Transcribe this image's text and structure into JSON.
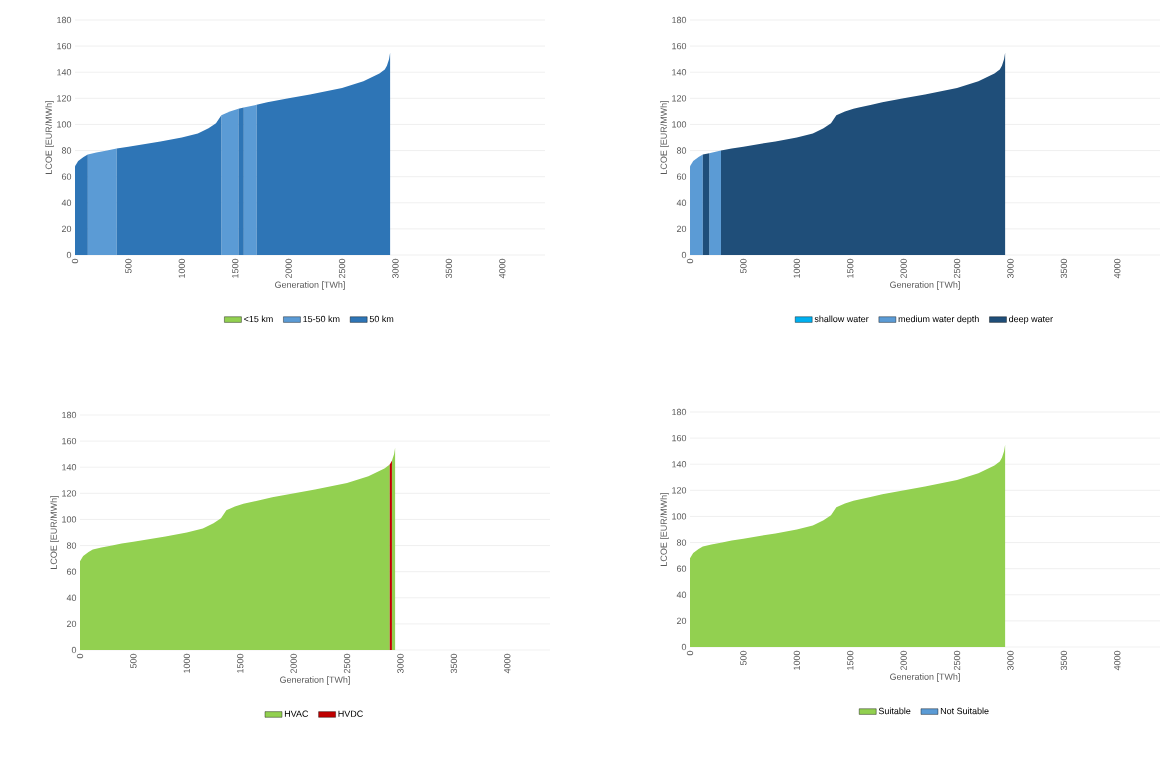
{
  "chart_data": [
    {
      "type": "area",
      "xlabel": "Generation [TWh]",
      "ylabel": "LCOE [EUR/MWh]",
      "xlim": [
        0,
        4400
      ],
      "ylim": [
        0,
        180
      ],
      "xticks": [
        0,
        500,
        1000,
        1500,
        2000,
        2500,
        3000,
        3500,
        4000
      ],
      "yticks": [
        0,
        20,
        40,
        60,
        80,
        100,
        120,
        140,
        160,
        180
      ],
      "grid": "y",
      "legend": "bottom",
      "series": [
        {
          "name": "<15 km",
          "color": "#92d050"
        },
        {
          "name": "15-50 km",
          "color": "#5b9bd5",
          "x": [
            120,
            200,
            300,
            390,
            1000,
            1370,
            1450,
            1530,
            1550,
            1580,
            1700
          ],
          "values": [
            77,
            78.5,
            80,
            81.5,
            null,
            107,
            110,
            112,
            null,
            113,
            115
          ]
        },
        {
          "name": "50 km",
          "color": "#2e75b6",
          "x": [
            0,
            30,
            80,
            120,
            250,
            390,
            500,
            800,
            1000,
            1150,
            1250,
            1320,
            1370,
            1450,
            1530,
            1580,
            1650,
            1700,
            1800,
            2000,
            2200,
            2500,
            2700,
            2850,
            2900,
            2920,
            2940,
            2950
          ],
          "values": [
            68,
            72,
            75,
            77,
            null,
            81.5,
            83,
            87,
            90,
            93,
            97,
            101,
            107,
            null,
            112,
            113,
            null,
            115,
            117,
            120,
            123,
            128,
            133,
            139,
            142,
            145,
            150,
            155
          ]
        }
      ]
    },
    {
      "type": "area",
      "xlabel": "Generation [TWh]",
      "ylabel": "LCOE [EUR/MWh]",
      "xlim": [
        0,
        4400
      ],
      "ylim": [
        0,
        180
      ],
      "xticks": [
        0,
        500,
        1000,
        1500,
        2000,
        2500,
        3000,
        3500,
        4000
      ],
      "yticks": [
        0,
        20,
        40,
        60,
        80,
        100,
        120,
        140,
        160,
        180
      ],
      "grid": "y",
      "legend": "bottom",
      "series": [
        {
          "name": "shallow water",
          "color": "#00b0f0"
        },
        {
          "name": "medium water depth",
          "color": "#5b9bd5",
          "x": [
            0,
            30,
            80,
            120,
            150,
            180,
            240,
            290
          ],
          "values": [
            68,
            72,
            75,
            77,
            null,
            78,
            79,
            80
          ]
        },
        {
          "name": "deep water",
          "color": "#1f4e79",
          "x": [
            120,
            180,
            240,
            290,
            390,
            500,
            800,
            1000,
            1150,
            1250,
            1320,
            1370,
            1450,
            1530,
            1580,
            1700,
            1800,
            2000,
            2200,
            2500,
            2700,
            2850,
            2900,
            2920,
            2940,
            2950
          ],
          "values": [
            77,
            78,
            null,
            80,
            81.5,
            83,
            87,
            90,
            93,
            97,
            101,
            107,
            110,
            112,
            113,
            115,
            117,
            120,
            123,
            128,
            133,
            139,
            142,
            145,
            150,
            155
          ]
        }
      ]
    },
    {
      "type": "area",
      "xlabel": "Generation [TWh]",
      "ylabel": "LCOE [EUR/MWh]",
      "xlim": [
        0,
        4400
      ],
      "ylim": [
        0,
        180
      ],
      "xticks": [
        0,
        500,
        1000,
        1500,
        2000,
        2500,
        3000,
        3500,
        4000
      ],
      "yticks": [
        0,
        20,
        40,
        60,
        80,
        100,
        120,
        140,
        160,
        180
      ],
      "grid": "y",
      "legend": "bottom",
      "series": [
        {
          "name": "HVAC",
          "color": "#92d050",
          "x": [
            0,
            30,
            80,
            120,
            200,
            300,
            390,
            500,
            800,
            1000,
            1150,
            1250,
            1320,
            1370,
            1450,
            1530,
            1700,
            1800,
            2000,
            2200,
            2500,
            2700,
            2850,
            2900,
            2910,
            2920,
            2940,
            2950
          ],
          "values": [
            68,
            72,
            75,
            77,
            78.5,
            80,
            81.5,
            83,
            87,
            90,
            93,
            97,
            101,
            107,
            110,
            112,
            115,
            117,
            120,
            123,
            128,
            133,
            139,
            142,
            null,
            145,
            150,
            155
          ]
        },
        {
          "name": "HVDC",
          "color": "#c00000",
          "x": [
            2900,
            2920
          ],
          "values": [
            142,
            145
          ]
        }
      ]
    },
    {
      "type": "area",
      "xlabel": "Generation [TWh]",
      "ylabel": "LCOE [EUR/MWh]",
      "xlim": [
        0,
        4400
      ],
      "ylim": [
        0,
        180
      ],
      "xticks": [
        0,
        500,
        1000,
        1500,
        2000,
        2500,
        3000,
        3500,
        4000
      ],
      "yticks": [
        0,
        20,
        40,
        60,
        80,
        100,
        120,
        140,
        160,
        180
      ],
      "grid": "y",
      "legend": "bottom",
      "series": [
        {
          "name": "Suitable",
          "color": "#92d050",
          "x": [
            0,
            30,
            80,
            120,
            200,
            300,
            390,
            500,
            800,
            1000,
            1150,
            1250,
            1320,
            1370,
            1450,
            1530,
            1700,
            1800,
            2000,
            2200,
            2500,
            2700,
            2850,
            2900,
            2920,
            2940,
            2950
          ],
          "values": [
            68,
            72,
            75,
            77,
            78.5,
            80,
            81.5,
            83,
            87,
            90,
            93,
            97,
            101,
            107,
            110,
            112,
            115,
            117,
            120,
            123,
            128,
            133,
            139,
            142,
            145,
            150,
            155
          ]
        },
        {
          "name": "Not Suitable",
          "color": "#5b9bd5"
        }
      ]
    }
  ]
}
